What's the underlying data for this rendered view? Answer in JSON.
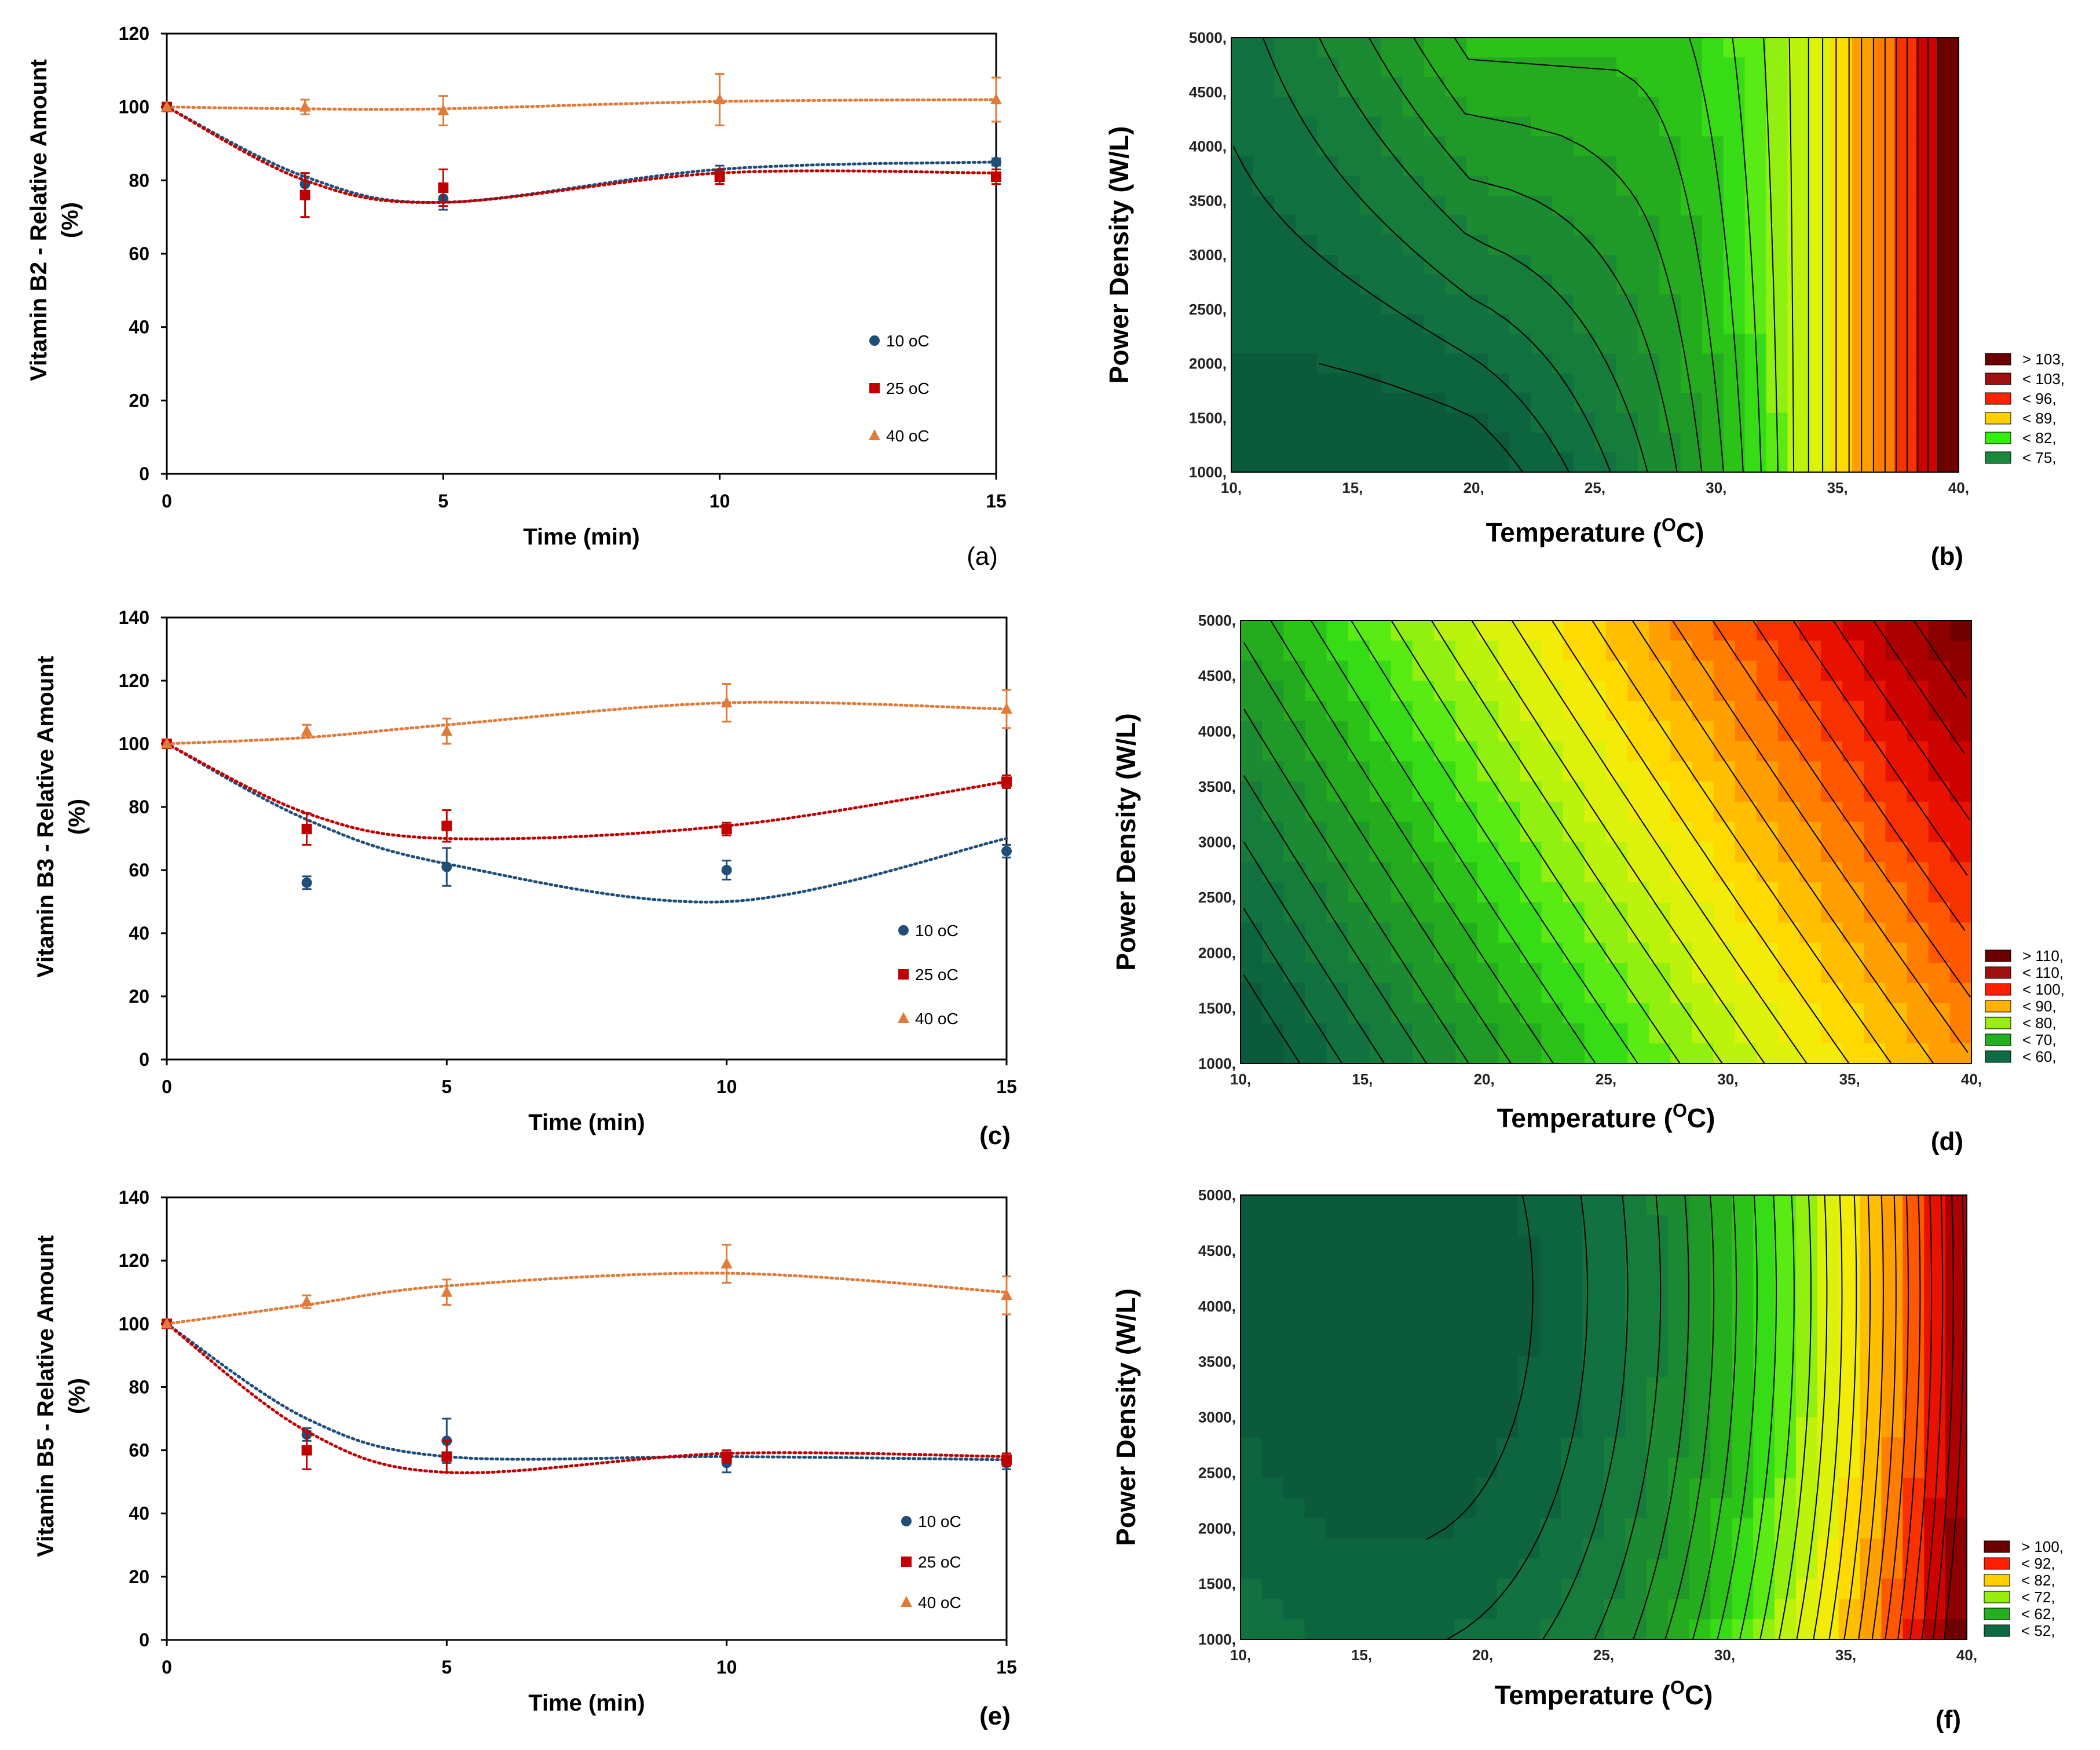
{
  "chart_data": [
    {
      "id": "a",
      "type": "scatter",
      "panel_label": "(a)",
      "xlabel": "Time (min)",
      "ylabel_line1": "Vitamin B2 - Relative Amount",
      "ylabel_line2": "(%)",
      "xlim": [
        0,
        15
      ],
      "ylim": [
        0,
        120
      ],
      "xticks": [
        0,
        5,
        10,
        15
      ],
      "yticks": [
        0,
        20,
        40,
        60,
        80,
        100,
        120
      ],
      "x": [
        0,
        2.5,
        5,
        10,
        15
      ],
      "series": [
        {
          "name": "10 oC",
          "marker": "circle",
          "color": "#1f4e79",
          "values": [
            100,
            79,
            75,
            82,
            85
          ],
          "errors": [
            0,
            2,
            3,
            2,
            1
          ],
          "fit": [
            100,
            81,
            74,
            83,
            85
          ]
        },
        {
          "name": "25 oC",
          "marker": "square",
          "color": "#c00000",
          "values": [
            100,
            76,
            78,
            81,
            81
          ],
          "errors": [
            0,
            6,
            5,
            2,
            2
          ],
          "fit": [
            100,
            80,
            74,
            82,
            82
          ]
        },
        {
          "name": "40 oC",
          "marker": "triangle",
          "color": "#e07b39",
          "values": [
            100,
            100,
            99,
            102,
            102
          ],
          "errors": [
            0,
            2,
            4,
            7,
            6
          ],
          "fit": [
            100,
            99.5,
            99.5,
            101.5,
            102
          ]
        }
      ]
    },
    {
      "id": "c",
      "type": "scatter",
      "panel_label": "(c)",
      "xlabel": "Time (min)",
      "ylabel_line1": "Vitamin B3 - Relative Amount",
      "ylabel_line2": "(%)",
      "xlim": [
        0,
        15
      ],
      "ylim": [
        0,
        140
      ],
      "xticks": [
        0,
        5,
        10,
        15
      ],
      "yticks": [
        0,
        20,
        40,
        60,
        80,
        100,
        120,
        140
      ],
      "x": [
        0,
        2.5,
        5,
        10,
        15
      ],
      "series": [
        {
          "name": "10 oC",
          "marker": "circle",
          "color": "#1f4e79",
          "values": [
            100,
            56,
            61,
            60,
            66
          ],
          "errors": [
            0,
            2,
            6,
            3,
            2
          ],
          "fit": [
            100,
            76,
            62,
            50,
            70
          ]
        },
        {
          "name": "25 oC",
          "marker": "square",
          "color": "#c00000",
          "values": [
            100,
            73,
            74,
            73,
            88
          ],
          "errors": [
            0,
            5,
            5,
            2,
            2
          ],
          "fit": [
            100,
            78,
            70,
            74,
            88
          ]
        },
        {
          "name": "40 oC",
          "marker": "triangle",
          "color": "#e07b39",
          "values": [
            100,
            104,
            104,
            113,
            111
          ],
          "errors": [
            0,
            2,
            4,
            6,
            6
          ],
          "fit": [
            100,
            102,
            106,
            113,
            111
          ]
        }
      ]
    },
    {
      "id": "e",
      "type": "scatter",
      "panel_label": "(e)",
      "xlabel": "Time (min)",
      "ylabel_line1": "Vitamin B5 - Relative Amount",
      "ylabel_line2": "(%)",
      "xlim": [
        0,
        15
      ],
      "ylim": [
        0,
        140
      ],
      "xticks": [
        0,
        5,
        10,
        15
      ],
      "yticks": [
        0,
        20,
        40,
        60,
        80,
        100,
        120,
        140
      ],
      "x": [
        0,
        2.5,
        5,
        10,
        15
      ],
      "series": [
        {
          "name": "10 oC",
          "marker": "circle",
          "color": "#1f4e79",
          "values": [
            100,
            65,
            63,
            56,
            56
          ],
          "errors": [
            0,
            2,
            7,
            3,
            2
          ],
          "fit": [
            100,
            70,
            58,
            58,
            57
          ]
        },
        {
          "name": "25 oC",
          "marker": "square",
          "color": "#c00000",
          "values": [
            100,
            60,
            58,
            58,
            57
          ],
          "errors": [
            0,
            6,
            5,
            2,
            2
          ],
          "fit": [
            100,
            66,
            53,
            59,
            58
          ]
        },
        {
          "name": "40 oC",
          "marker": "triangle",
          "color": "#e07b39",
          "values": [
            100,
            107,
            110,
            119,
            109
          ],
          "errors": [
            0,
            2,
            4,
            6,
            6
          ],
          "fit": [
            100,
            106,
            112,
            116,
            110
          ]
        }
      ]
    },
    {
      "id": "b",
      "type": "contour",
      "panel_label": "(b)",
      "xlabel_main": "Temperature (",
      "xlabel_sup": "O",
      "xlabel_end": "C)",
      "ylabel": "Power Density (W/L)",
      "xlim": [
        10,
        40
      ],
      "ylim": [
        1000,
        5000
      ],
      "xticks": [
        "10,",
        "15,",
        "20,",
        "25,",
        "30,",
        "35,",
        "40,"
      ],
      "yticks": [
        "1000,",
        "1500,",
        "2000,",
        "2500,",
        "3000,",
        "3500,",
        "4000,",
        "4500,",
        "5000,"
      ],
      "legend": [
        {
          "label": "> 103,",
          "color": "#6b0000"
        },
        {
          "label": "< 103,",
          "color": "#a01010"
        },
        {
          "label": "< 96,",
          "color": "#ff2000"
        },
        {
          "label": "< 89,",
          "color": "#ffd000"
        },
        {
          "label": "< 82,",
          "color": "#33ee10"
        },
        {
          "label": "< 75,",
          "color": "#1a8a3a"
        }
      ]
    },
    {
      "id": "d",
      "type": "contour",
      "panel_label": "(d)",
      "xlabel_main": "Temperature (",
      "xlabel_sup": "O",
      "xlabel_end": "C)",
      "ylabel": "Power Density (W/L)",
      "xlim": [
        10,
        40
      ],
      "ylim": [
        1000,
        5000
      ],
      "xticks": [
        "10,",
        "15,",
        "20,",
        "25,",
        "30,",
        "35,",
        "40,"
      ],
      "yticks": [
        "1000,",
        "1500,",
        "2000,",
        "2500,",
        "3000,",
        "3500,",
        "4000,",
        "4500,",
        "5000,"
      ],
      "legend": [
        {
          "label": "> 110,",
          "color": "#6b0000"
        },
        {
          "label": "< 110,",
          "color": "#a01010"
        },
        {
          "label": "< 100,",
          "color": "#ff2000"
        },
        {
          "label": "< 90,",
          "color": "#ffb000"
        },
        {
          "label": "< 80,",
          "color": "#99ee10"
        },
        {
          "label": "< 70,",
          "color": "#22b020"
        },
        {
          "label": "< 60,",
          "color": "#0e6a42"
        }
      ]
    },
    {
      "id": "f",
      "type": "contour",
      "panel_label": "(f)",
      "xlabel_main": "Temperature (",
      "xlabel_sup": "O",
      "xlabel_end": "C)",
      "ylabel": "Power Density (W/L)",
      "xlim": [
        10,
        40
      ],
      "ylim": [
        1000,
        5000
      ],
      "xticks": [
        "10,",
        "15,",
        "20,",
        "25,",
        "30,",
        "35,",
        "40,"
      ],
      "yticks": [
        "1000,",
        "1500,",
        "2000,",
        "2500,",
        "3000,",
        "3500,",
        "4000,",
        "4500,",
        "5000,"
      ],
      "legend": [
        {
          "label": "> 100,",
          "color": "#6b0000"
        },
        {
          "label": "< 92,",
          "color": "#ff2000"
        },
        {
          "label": "< 82,",
          "color": "#ffd000"
        },
        {
          "label": "< 72,",
          "color": "#99ee10"
        },
        {
          "label": "< 62,",
          "color": "#22b020"
        },
        {
          "label": "< 52,",
          "color": "#0e6a42"
        }
      ]
    }
  ]
}
